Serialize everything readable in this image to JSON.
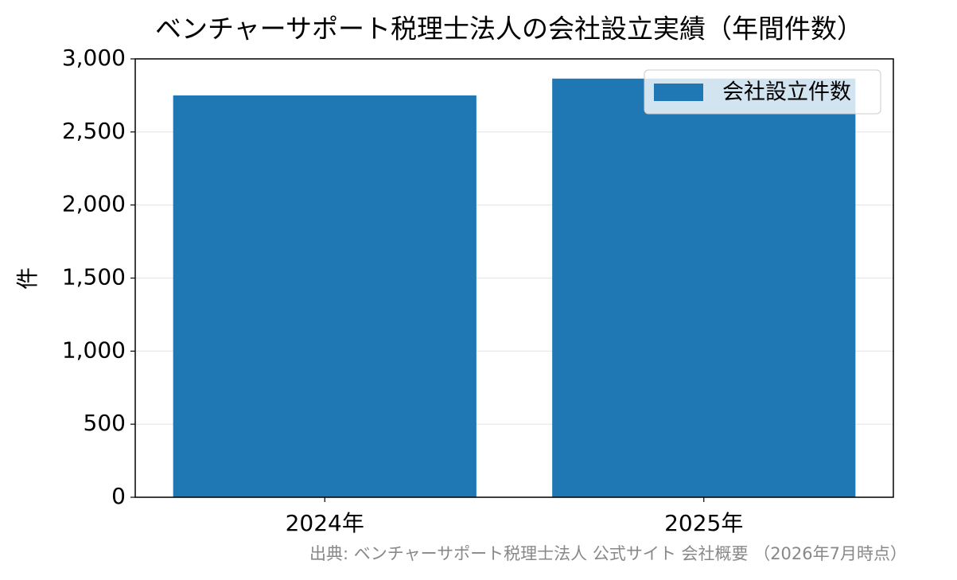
{
  "chart_data": {
    "type": "bar",
    "title": "ベンチャーサポート税理士法人の会社設立実績（年間件数）",
    "ylabel": "件",
    "categories": [
      "2024年",
      "2025年"
    ],
    "series": [
      {
        "name": "会社設立件数",
        "color": "#1f77b4",
        "values": [
          2750,
          2865
        ]
      }
    ],
    "ylim": [
      0,
      3000
    ],
    "yticks": [
      0,
      500,
      {
        "value": 1000,
        "label": "1,000"
      },
      {
        "value": 1500,
        "label": "1,500"
      },
      {
        "value": 2000,
        "label": "2,000"
      },
      {
        "value": 2500,
        "label": "2,500"
      },
      {
        "value": 3000,
        "label": "3,000"
      }
    ],
    "grid": true,
    "legend": "upper right",
    "source": "出典: ベンチャーサポート税理士法人 公式サイト 会社概要 （2026年7月時点）"
  }
}
